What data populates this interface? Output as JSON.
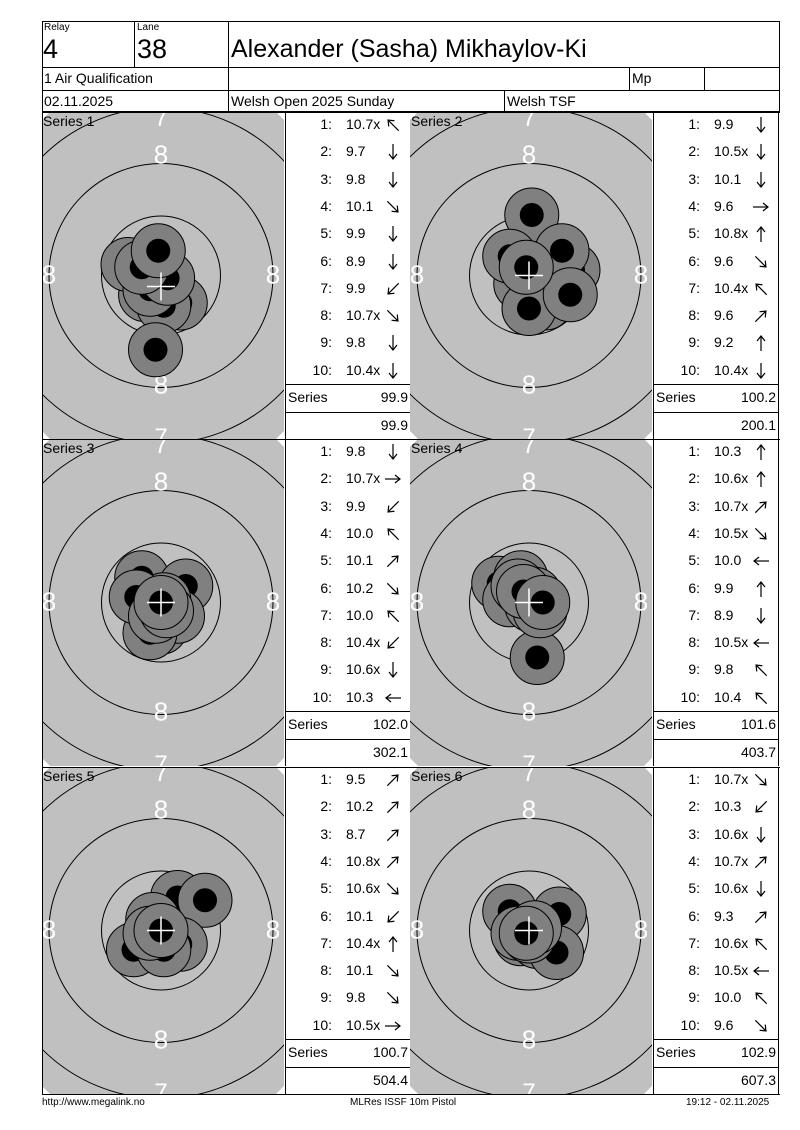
{
  "header": {
    "relay_label": "Relay",
    "relay": "4",
    "lane_label": "Lane",
    "lane": "38",
    "name": "Alexander (Sasha) Mikhaylov-Ki",
    "event": "1 Air Qualification",
    "class": "Mp",
    "date": "02.11.2025",
    "competition": "Welsh Open 2025 Sunday",
    "club": "Welsh TSF"
  },
  "target_ring_label": "8",
  "target_ring_label_outer": "7",
  "series_word": "Series",
  "series": [
    {
      "title": "Series 1",
      "total": "99.9",
      "cumulative": "99.9",
      "shots": [
        {
          "n": "1:",
          "v": "10.7x",
          "dir": "nw"
        },
        {
          "n": "2:",
          "v": "9.7",
          "dir": "s"
        },
        {
          "n": "3:",
          "v": "9.8",
          "dir": "s"
        },
        {
          "n": "4:",
          "v": "10.1",
          "dir": "se"
        },
        {
          "n": "5:",
          "v": "9.9",
          "dir": "s"
        },
        {
          "n": "6:",
          "v": "8.9",
          "dir": "s"
        },
        {
          "n": "7:",
          "v": "9.9",
          "dir": "sw"
        },
        {
          "n": "8:",
          "v": "10.7x",
          "dir": "se"
        },
        {
          "n": "9:",
          "v": "9.8",
          "dir": "s"
        },
        {
          "n": "10:",
          "v": "10.4x",
          "dir": "s"
        }
      ],
      "hits": [
        [
          0.0,
          0.05
        ],
        [
          -0.28,
          0.35
        ],
        [
          -0.6,
          -0.2
        ],
        [
          0.35,
          0.5
        ],
        [
          0.05,
          0.55
        ],
        [
          -0.1,
          1.35
        ],
        [
          -0.2,
          0.25
        ],
        [
          0.12,
          0.05
        ],
        [
          -0.35,
          -0.15
        ],
        [
          -0.05,
          -0.45
        ]
      ],
      "center_mark": [
        0.0,
        0.2
      ]
    },
    {
      "title": "Series 2",
      "total": "100.2",
      "cumulative": "200.1",
      "shots": [
        {
          "n": "1:",
          "v": "9.9",
          "dir": "s"
        },
        {
          "n": "2:",
          "v": "10.5x",
          "dir": "s"
        },
        {
          "n": "3:",
          "v": "10.1",
          "dir": "s"
        },
        {
          "n": "4:",
          "v": "9.6",
          "dir": "e"
        },
        {
          "n": "5:",
          "v": "10.8x",
          "dir": "n"
        },
        {
          "n": "6:",
          "v": "9.6",
          "dir": "se"
        },
        {
          "n": "7:",
          "v": "10.4x",
          "dir": "nw"
        },
        {
          "n": "8:",
          "v": "9.6",
          "dir": "ne"
        },
        {
          "n": "9:",
          "v": "9.2",
          "dir": "n"
        },
        {
          "n": "10:",
          "v": "10.4x",
          "dir": "s"
        }
      ],
      "hits": [
        [
          0.05,
          -1.1
        ],
        [
          0.0,
          0.25
        ],
        [
          -0.15,
          0.15
        ],
        [
          0.3,
          0.5
        ],
        [
          0.0,
          0.6
        ],
        [
          0.8,
          -0.1
        ],
        [
          0.6,
          -0.45
        ],
        [
          0.75,
          0.35
        ],
        [
          -0.35,
          -0.35
        ],
        [
          -0.05,
          -0.15
        ]
      ],
      "center_mark": [
        0.0,
        0.0
      ]
    },
    {
      "title": "Series 3",
      "total": "102.0",
      "cumulative": "302.1",
      "shots": [
        {
          "n": "1:",
          "v": "9.8",
          "dir": "s"
        },
        {
          "n": "2:",
          "v": "10.7x",
          "dir": "e"
        },
        {
          "n": "3:",
          "v": "9.9",
          "dir": "sw"
        },
        {
          "n": "4:",
          "v": "10.0",
          "dir": "nw"
        },
        {
          "n": "5:",
          "v": "10.1",
          "dir": "ne"
        },
        {
          "n": "6:",
          "v": "10.2",
          "dir": "se"
        },
        {
          "n": "7:",
          "v": "10.0",
          "dir": "nw"
        },
        {
          "n": "8:",
          "v": "10.4x",
          "dir": "sw"
        },
        {
          "n": "9:",
          "v": "10.6x",
          "dir": "s"
        },
        {
          "n": "10:",
          "v": "10.3",
          "dir": "w"
        }
      ],
      "hits": [
        [
          -0.35,
          -0.45
        ],
        [
          0.45,
          -0.3
        ],
        [
          0.0,
          0.45
        ],
        [
          0.3,
          0.25
        ],
        [
          -0.2,
          0.55
        ],
        [
          0.05,
          -0.05
        ],
        [
          -0.45,
          -0.1
        ],
        [
          -0.1,
          0.25
        ],
        [
          0.1,
          0.15
        ],
        [
          0.0,
          0.0
        ]
      ],
      "center_mark": [
        0.0,
        0.0
      ]
    },
    {
      "title": "Series 4",
      "total": "101.6",
      "cumulative": "403.7",
      "shots": [
        {
          "n": "1:",
          "v": "10.3",
          "dir": "n"
        },
        {
          "n": "2:",
          "v": "10.6x",
          "dir": "n"
        },
        {
          "n": "3:",
          "v": "10.7x",
          "dir": "ne"
        },
        {
          "n": "4:",
          "v": "10.5x",
          "dir": "se"
        },
        {
          "n": "5:",
          "v": "10.0",
          "dir": "w"
        },
        {
          "n": "6:",
          "v": "9.9",
          "dir": "n"
        },
        {
          "n": "7:",
          "v": "8.9",
          "dir": "s"
        },
        {
          "n": "8:",
          "v": "10.5x",
          "dir": "w"
        },
        {
          "n": "9:",
          "v": "9.8",
          "dir": "nw"
        },
        {
          "n": "10:",
          "v": "10.4",
          "dir": "nw"
        }
      ],
      "hits": [
        [
          -0.55,
          -0.35
        ],
        [
          -0.15,
          -0.45
        ],
        [
          0.1,
          -0.15
        ],
        [
          -0.35,
          -0.05
        ],
        [
          0.05,
          0.05
        ],
        [
          -0.2,
          -0.3
        ],
        [
          0.15,
          1.0
        ],
        [
          0.2,
          0.15
        ],
        [
          -0.1,
          -0.2
        ],
        [
          0.25,
          0.0
        ]
      ],
      "center_mark": [
        0.0,
        0.0
      ]
    },
    {
      "title": "Series 5",
      "total": "100.7",
      "cumulative": "504.4",
      "shots": [
        {
          "n": "1:",
          "v": "9.5",
          "dir": "ne"
        },
        {
          "n": "2:",
          "v": "10.2",
          "dir": "ne"
        },
        {
          "n": "3:",
          "v": "8.7",
          "dir": "ne"
        },
        {
          "n": "4:",
          "v": "10.8x",
          "dir": "ne"
        },
        {
          "n": "5:",
          "v": "10.6x",
          "dir": "se"
        },
        {
          "n": "6:",
          "v": "10.1",
          "dir": "sw"
        },
        {
          "n": "7:",
          "v": "10.4x",
          "dir": "n"
        },
        {
          "n": "8:",
          "v": "10.1",
          "dir": "se"
        },
        {
          "n": "9:",
          "v": "9.8",
          "dir": "se"
        },
        {
          "n": "10:",
          "v": "10.5x",
          "dir": "e"
        }
      ],
      "hits": [
        [
          0.3,
          -0.6
        ],
        [
          -0.2,
          0.15
        ],
        [
          0.8,
          -0.55
        ],
        [
          -0.5,
          0.35
        ],
        [
          0.05,
          0.2
        ],
        [
          -0.15,
          -0.2
        ],
        [
          0.35,
          0.25
        ],
        [
          0.05,
          0.35
        ],
        [
          -0.2,
          0.05
        ],
        [
          0.0,
          0.0
        ]
      ],
      "center_mark": [
        0.0,
        0.0
      ]
    },
    {
      "title": "Series 6",
      "total": "102.9",
      "cumulative": "607.3",
      "shots": [
        {
          "n": "1:",
          "v": "10.7x",
          "dir": "se"
        },
        {
          "n": "2:",
          "v": "10.3",
          "dir": "sw"
        },
        {
          "n": "3:",
          "v": "10.6x",
          "dir": "s"
        },
        {
          "n": "4:",
          "v": "10.7x",
          "dir": "ne"
        },
        {
          "n": "5:",
          "v": "10.6x",
          "dir": "s"
        },
        {
          "n": "6:",
          "v": "9.3",
          "dir": "ne"
        },
        {
          "n": "7:",
          "v": "10.6x",
          "dir": "nw"
        },
        {
          "n": "8:",
          "v": "10.5x",
          "dir": "w"
        },
        {
          "n": "9:",
          "v": "10.0",
          "dir": "nw"
        },
        {
          "n": "10:",
          "v": "9.6",
          "dir": "se"
        }
      ],
      "hits": [
        [
          -0.35,
          -0.35
        ],
        [
          0.05,
          0.0
        ],
        [
          -0.15,
          0.15
        ],
        [
          0.55,
          -0.3
        ],
        [
          0.15,
          0.2
        ],
        [
          0.5,
          0.4
        ],
        [
          -0.2,
          0.05
        ],
        [
          0.0,
          0.1
        ],
        [
          0.1,
          -0.05
        ],
        [
          -0.05,
          0.05
        ]
      ],
      "center_mark": [
        0.0,
        0.0
      ]
    }
  ],
  "footer": {
    "url": "http://www.megalink.no",
    "system": "MLRes ISSF 10m Pistol",
    "printed": "19:12 - 02.11.2025"
  }
}
